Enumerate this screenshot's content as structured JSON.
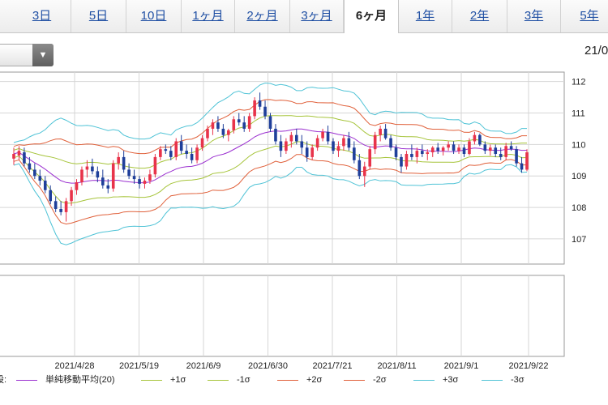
{
  "tabs": [
    {
      "label": "3日",
      "active": false
    },
    {
      "label": "5日",
      "active": false
    },
    {
      "label": "10日",
      "active": false
    },
    {
      "label": "1ヶ月",
      "active": false
    },
    {
      "label": "2ヶ月",
      "active": false
    },
    {
      "label": "3ヶ月",
      "active": false
    },
    {
      "label": "6ヶ月",
      "active": true
    },
    {
      "label": "1年",
      "active": false
    },
    {
      "label": "2年",
      "active": false
    },
    {
      "label": "3年",
      "active": false
    },
    {
      "label": "5年",
      "active": false
    }
  ],
  "top_right_date": "21/0",
  "dropdown": {
    "icon": "triangle-down-icon"
  },
  "legend": {
    "prefix": "設:",
    "items": [
      {
        "label": "単純移動平均(20)",
        "color": "#9b30d0"
      },
      {
        "label": "+1σ",
        "color": "#a6c43a"
      },
      {
        "label": "-1σ",
        "color": "#a6c43a"
      },
      {
        "label": "+2σ",
        "color": "#e0603a"
      },
      {
        "label": "-2σ",
        "color": "#e0603a"
      },
      {
        "label": "+3σ",
        "color": "#4fc3d6"
      },
      {
        "label": "-3σ",
        "color": "#4fc3d6"
      }
    ]
  },
  "chart_data": {
    "type": "candlestick",
    "ylim": [
      106.2,
      112.3
    ],
    "y_ticks": [
      107,
      108,
      109,
      110,
      111,
      112
    ],
    "x_tick_labels": [
      "2021/4/28",
      "2021/5/19",
      "2021/6/9",
      "2021/6/30",
      "2021/7/21",
      "2021/8/11",
      "2021/9/1",
      "2021/9/22"
    ],
    "grid": true,
    "colors": {
      "up": "#e8334a",
      "down": "#1f3f9a"
    },
    "candles": [
      [
        109.55,
        109.9,
        109.35,
        109.7
      ],
      [
        109.65,
        109.95,
        109.5,
        109.8
      ],
      [
        109.75,
        109.9,
        109.3,
        109.4
      ],
      [
        109.4,
        109.6,
        109.1,
        109.2
      ],
      [
        109.2,
        109.4,
        108.9,
        109.0
      ],
      [
        109.0,
        109.2,
        108.7,
        108.85
      ],
      [
        108.85,
        109.0,
        108.45,
        108.55
      ],
      [
        108.55,
        108.7,
        108.1,
        108.2
      ],
      [
        108.2,
        108.35,
        107.85,
        107.95
      ],
      [
        107.95,
        108.2,
        107.75,
        107.85
      ],
      [
        107.85,
        108.3,
        107.55,
        108.2
      ],
      [
        108.2,
        108.65,
        108.05,
        108.55
      ],
      [
        108.55,
        108.9,
        108.4,
        108.8
      ],
      [
        108.8,
        109.3,
        108.7,
        109.2
      ],
      [
        109.2,
        109.5,
        108.95,
        109.3
      ],
      [
        109.3,
        109.55,
        109.05,
        109.15
      ],
      [
        109.15,
        109.3,
        108.8,
        108.95
      ],
      [
        108.95,
        109.2,
        108.6,
        108.7
      ],
      [
        108.7,
        108.9,
        108.45,
        108.6
      ],
      [
        108.6,
        109.5,
        108.5,
        109.4
      ],
      [
        109.4,
        109.75,
        109.2,
        109.6
      ],
      [
        109.6,
        109.8,
        109.1,
        109.2
      ],
      [
        109.2,
        109.4,
        108.9,
        109.0
      ],
      [
        109.0,
        109.2,
        108.75,
        108.9
      ],
      [
        108.9,
        109.0,
        108.6,
        108.75
      ],
      [
        108.75,
        108.95,
        108.6,
        108.85
      ],
      [
        108.85,
        109.2,
        108.75,
        109.05
      ],
      [
        109.05,
        109.7,
        108.95,
        109.6
      ],
      [
        109.6,
        109.95,
        109.5,
        109.85
      ],
      [
        109.85,
        110.0,
        109.7,
        109.8
      ],
      [
        109.8,
        109.95,
        109.5,
        109.6
      ],
      [
        109.6,
        110.2,
        109.5,
        110.1
      ],
      [
        110.1,
        110.3,
        109.7,
        109.8
      ],
      [
        109.8,
        110.0,
        109.55,
        109.7
      ],
      [
        109.7,
        109.9,
        109.4,
        109.5
      ],
      [
        109.5,
        110.0,
        109.4,
        109.9
      ],
      [
        109.9,
        110.3,
        109.8,
        110.2
      ],
      [
        110.2,
        110.6,
        110.1,
        110.5
      ],
      [
        110.5,
        110.8,
        110.3,
        110.7
      ],
      [
        110.7,
        110.9,
        110.4,
        110.5
      ],
      [
        110.5,
        110.65,
        110.2,
        110.3
      ],
      [
        110.3,
        110.5,
        110.1,
        110.45
      ],
      [
        110.45,
        110.9,
        110.35,
        110.8
      ],
      [
        110.8,
        111.0,
        110.6,
        110.7
      ],
      [
        110.7,
        110.9,
        110.4,
        110.5
      ],
      [
        110.5,
        111.0,
        110.4,
        110.9
      ],
      [
        110.9,
        111.5,
        110.8,
        111.4
      ],
      [
        111.4,
        111.65,
        111.1,
        111.2
      ],
      [
        111.2,
        111.4,
        110.8,
        110.9
      ],
      [
        110.9,
        111.0,
        110.4,
        110.5
      ],
      [
        110.5,
        110.65,
        110.0,
        110.1
      ],
      [
        110.1,
        110.3,
        109.6,
        109.8
      ],
      [
        109.8,
        110.2,
        109.7,
        110.1
      ],
      [
        110.1,
        110.4,
        109.9,
        110.3
      ],
      [
        110.3,
        110.5,
        110.0,
        110.1
      ],
      [
        110.1,
        110.3,
        109.7,
        109.9
      ],
      [
        109.9,
        110.1,
        109.45,
        109.6
      ],
      [
        109.6,
        110.0,
        109.5,
        109.9
      ],
      [
        109.9,
        110.3,
        109.8,
        110.2
      ],
      [
        110.2,
        110.5,
        110.1,
        110.4
      ],
      [
        110.4,
        110.6,
        110.0,
        110.1
      ],
      [
        110.1,
        110.2,
        109.7,
        109.8
      ],
      [
        109.8,
        110.1,
        109.6,
        109.95
      ],
      [
        109.95,
        110.3,
        109.8,
        110.2
      ],
      [
        110.2,
        110.4,
        109.8,
        109.9
      ],
      [
        109.9,
        110.1,
        109.4,
        109.5
      ],
      [
        109.5,
        109.7,
        108.9,
        109.0
      ],
      [
        109.0,
        109.45,
        108.65,
        109.3
      ],
      [
        109.3,
        109.95,
        109.2,
        109.85
      ],
      [
        109.85,
        110.4,
        109.7,
        110.3
      ],
      [
        110.3,
        110.6,
        110.1,
        110.5
      ],
      [
        110.5,
        110.65,
        110.15,
        110.2
      ],
      [
        110.2,
        110.3,
        109.8,
        109.9
      ],
      [
        109.9,
        110.0,
        109.5,
        109.6
      ],
      [
        109.6,
        109.7,
        109.1,
        109.3
      ],
      [
        109.3,
        109.8,
        109.2,
        109.7
      ],
      [
        109.7,
        110.0,
        109.5,
        109.6
      ],
      [
        109.6,
        109.9,
        109.4,
        109.8
      ],
      [
        109.8,
        110.0,
        109.6,
        109.7
      ],
      [
        109.7,
        109.85,
        109.5,
        109.75
      ],
      [
        109.75,
        109.95,
        109.6,
        109.9
      ],
      [
        109.9,
        110.05,
        109.7,
        109.8
      ],
      [
        109.8,
        109.95,
        109.65,
        109.9
      ],
      [
        109.9,
        110.1,
        109.8,
        110.0
      ],
      [
        110.0,
        110.1,
        109.7,
        109.8
      ],
      [
        109.8,
        110.0,
        109.7,
        109.9
      ],
      [
        109.9,
        110.0,
        109.6,
        109.7
      ],
      [
        109.7,
        110.2,
        109.65,
        110.1
      ],
      [
        110.1,
        110.4,
        110.0,
        110.3
      ],
      [
        110.3,
        110.35,
        109.95,
        110.0
      ],
      [
        110.0,
        110.1,
        109.7,
        109.8
      ],
      [
        109.8,
        110.0,
        109.65,
        109.9
      ],
      [
        109.9,
        110.0,
        109.6,
        109.7
      ],
      [
        109.7,
        109.9,
        109.5,
        109.6
      ],
      [
        109.6,
        110.05,
        109.5,
        109.95
      ],
      [
        109.95,
        110.1,
        109.8,
        109.85
      ],
      [
        109.85,
        109.95,
        109.3,
        109.4
      ],
      [
        109.4,
        109.6,
        109.1,
        109.2
      ],
      [
        109.2,
        109.85,
        109.15,
        109.75
      ]
    ]
  }
}
